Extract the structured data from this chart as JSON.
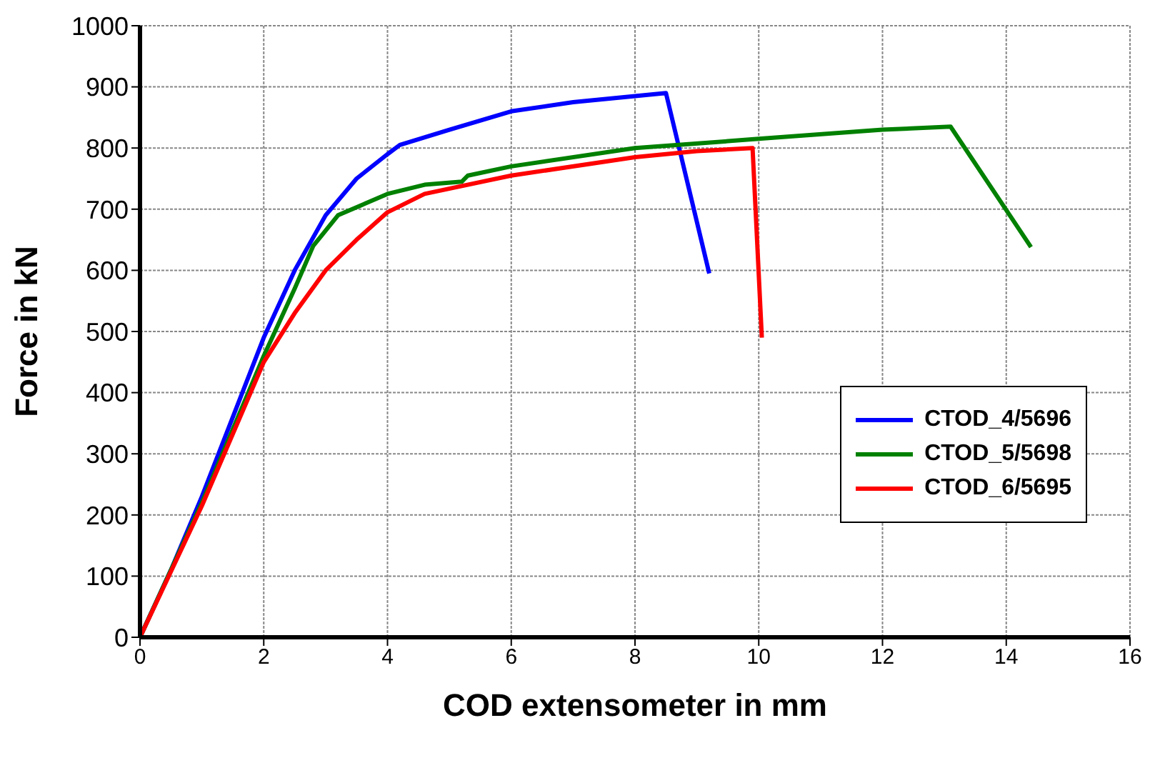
{
  "chart_data": {
    "type": "line",
    "xlabel": "COD extensometer in mm",
    "ylabel": "Force in kN",
    "xlim": [
      0,
      16
    ],
    "xticks": [
      0,
      2,
      4,
      6,
      8,
      10,
      12,
      14,
      16
    ],
    "ylim": [
      0,
      1000
    ],
    "yticks": [
      0,
      100,
      200,
      300,
      400,
      500,
      600,
      700,
      800,
      900,
      1000
    ],
    "grid": true,
    "legend": "right",
    "marker": "none",
    "line_style": "solid",
    "series": [
      {
        "name": "CTOD_4/5696",
        "color": "#0000ff",
        "x": [
          0,
          0.5,
          1,
          1.5,
          2,
          2.5,
          3,
          3.5,
          4,
          4.2,
          5,
          6,
          7,
          8,
          8.5,
          9.2
        ],
        "values": [
          0,
          110,
          230,
          360,
          490,
          600,
          690,
          750,
          790,
          805,
          830,
          860,
          875,
          885,
          890,
          595
        ]
      },
      {
        "name": "CTOD_5/5698",
        "color": "#008000",
        "x": [
          0,
          1,
          2,
          2.5,
          2.8,
          3.2,
          4,
          4.6,
          5.2,
          5.3,
          6,
          8,
          10,
          12,
          13.1,
          14.4
        ],
        "values": [
          0,
          220,
          460,
          570,
          640,
          690,
          725,
          740,
          745,
          755,
          770,
          800,
          815,
          830,
          835,
          638
        ]
      },
      {
        "name": "CTOD_6/5695",
        "color": "#ff0000",
        "x": [
          0,
          1,
          2,
          2.5,
          3,
          3.5,
          4,
          4.6,
          6,
          8,
          9,
          9.9,
          10.05
        ],
        "values": [
          0,
          215,
          450,
          530,
          600,
          650,
          695,
          725,
          755,
          785,
          795,
          800,
          490
        ]
      }
    ]
  }
}
